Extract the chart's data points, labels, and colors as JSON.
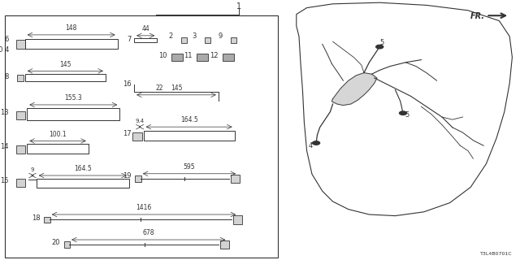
{
  "bg_color": "#ffffff",
  "line_color": "#333333",
  "title": "1",
  "part_label": "T3L4B0701C",
  "fr_label": "FR.",
  "fs_base": 6,
  "fs_small": 5.5,
  "fs_tiny": 5.0
}
